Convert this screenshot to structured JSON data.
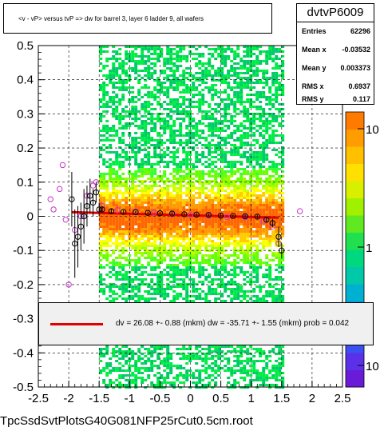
{
  "chart_data": {
    "type": "scatter",
    "title": "<v - vP>     versus  tvP =>  dw for barrel 3, layer 6 ladder 9, all wafers",
    "xlabel": "",
    "ylabel": "",
    "xlim": [
      -2.5,
      2.5
    ],
    "ylim": [
      -0.5,
      0.5
    ],
    "x_ticks": [
      "-2.5",
      "-2",
      "-1.5",
      "-1",
      "-0.5",
      "0",
      "0.5",
      "1",
      "1.5",
      "2",
      "2.5"
    ],
    "y_ticks": [
      "-0.5",
      "-0.4",
      "-0.3",
      "-0.2",
      "-0.1",
      "0",
      "0.1",
      "0.2",
      "0.3",
      "0.4",
      "0.5"
    ],
    "z_axis": {
      "scale": "log",
      "labels": [
        "10",
        "1",
        "10"
      ]
    },
    "grid": true,
    "stats": {
      "name": "dvtvP6009",
      "rows": [
        {
          "label": "Entries",
          "value": "62296"
        },
        {
          "label": "Mean x",
          "value": "-0.03532"
        },
        {
          "label": "Mean y",
          "value": "0.003373"
        },
        {
          "label": "RMS x",
          "value": "0.6937"
        },
        {
          "label": "RMS y",
          "value": "0.117"
        }
      ]
    },
    "fit": {
      "text": "dv =   26.08 +-  0.88 (mkm) dw =  -35.71 +-  1.55 (mkm) prob = 0.042",
      "x_range": [
        -1.95,
        1.45
      ],
      "y_start": 0.012,
      "y_end": -0.004,
      "color": "#e00000"
    },
    "profile_black": [
      {
        "x": -1.95,
        "y": 0.05,
        "e": 0.08
      },
      {
        "x": -1.9,
        "y": -0.08,
        "e": 0.1
      },
      {
        "x": -1.85,
        "y": -0.06,
        "e": 0.09
      },
      {
        "x": -1.8,
        "y": -0.03,
        "e": 0.07
      },
      {
        "x": -1.75,
        "y": 0.0,
        "e": 0.08
      },
      {
        "x": -1.7,
        "y": 0.03,
        "e": 0.06
      },
      {
        "x": -1.65,
        "y": 0.06,
        "e": 0.05
      },
      {
        "x": -1.6,
        "y": 0.04,
        "e": 0.04
      },
      {
        "x": -1.55,
        "y": 0.07,
        "e": 0.03
      },
      {
        "x": -1.5,
        "y": 0.02,
        "e": 0.02
      },
      {
        "x": -1.45,
        "y": 0.02,
        "e": 0.01
      },
      {
        "x": -1.3,
        "y": 0.015,
        "e": 0.006
      },
      {
        "x": -1.1,
        "y": 0.013,
        "e": 0.005
      },
      {
        "x": -0.9,
        "y": 0.012,
        "e": 0.004
      },
      {
        "x": -0.7,
        "y": 0.01,
        "e": 0.004
      },
      {
        "x": -0.5,
        "y": 0.009,
        "e": 0.004
      },
      {
        "x": -0.3,
        "y": 0.008,
        "e": 0.004
      },
      {
        "x": -0.1,
        "y": 0.006,
        "e": 0.004
      },
      {
        "x": 0.1,
        "y": 0.005,
        "e": 0.004
      },
      {
        "x": 0.3,
        "y": 0.004,
        "e": 0.004
      },
      {
        "x": 0.5,
        "y": 0.002,
        "e": 0.004
      },
      {
        "x": 0.7,
        "y": 0.001,
        "e": 0.004
      },
      {
        "x": 0.9,
        "y": 0.0,
        "e": 0.004
      },
      {
        "x": 1.1,
        "y": -0.001,
        "e": 0.005
      },
      {
        "x": 1.25,
        "y": -0.01,
        "e": 0.008
      },
      {
        "x": 1.35,
        "y": -0.02,
        "e": 0.012
      },
      {
        "x": 1.45,
        "y": -0.06,
        "e": 0.03
      },
      {
        "x": 1.5,
        "y": -0.1,
        "e": 0.02
      }
    ],
    "profile_magenta": [
      {
        "x": -2.3,
        "y": 0.05
      },
      {
        "x": -2.25,
        "y": 0.02
      },
      {
        "x": -2.15,
        "y": 0.08
      },
      {
        "x": -2.1,
        "y": 0.15
      },
      {
        "x": -2.05,
        "y": -0.01
      },
      {
        "x": -2.0,
        "y": -0.2
      },
      {
        "x": -1.9,
        "y": -0.04
      },
      {
        "x": -1.8,
        "y": 0.0
      },
      {
        "x": -1.7,
        "y": 0.06
      },
      {
        "x": -1.6,
        "y": 0.09
      },
      {
        "x": -1.55,
        "y": 0.1
      },
      {
        "x": -1.45,
        "y": 0.03
      },
      {
        "x": -1.2,
        "y": 0.018
      },
      {
        "x": -0.9,
        "y": 0.014
      },
      {
        "x": -0.6,
        "y": 0.011
      },
      {
        "x": -0.3,
        "y": 0.006
      },
      {
        "x": 0.0,
        "y": 0.004
      },
      {
        "x": 0.3,
        "y": 0.002
      },
      {
        "x": 0.6,
        "y": -0.002
      },
      {
        "x": 0.9,
        "y": -0.003
      },
      {
        "x": 1.2,
        "y": -0.015
      },
      {
        "x": 1.35,
        "y": -0.03
      },
      {
        "x": 1.45,
        "y": -0.08
      },
      {
        "x": 1.8,
        "y": 0.015
      }
    ]
  },
  "footer": {
    "label": "TpcSsdSvtPlotsG40G081NFP25rCut0.5cm.root"
  }
}
